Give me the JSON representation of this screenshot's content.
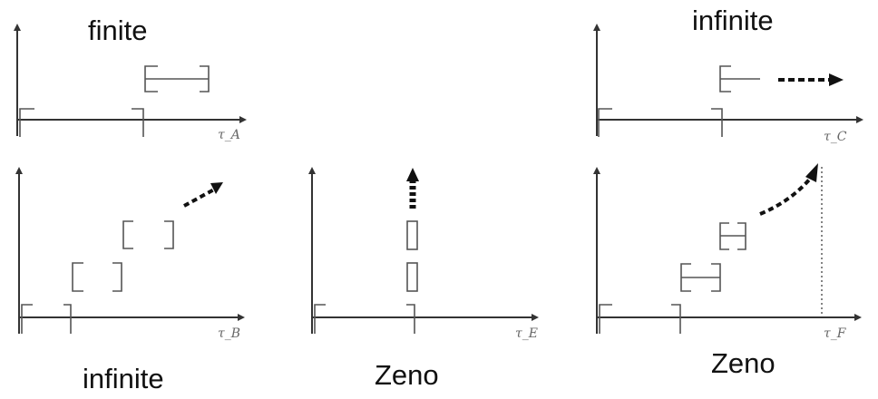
{
  "captions": {
    "finite": "finite",
    "infinite_top": "infinite",
    "infinite_bottom": "infinite",
    "zeno_middle": "Zeno",
    "zeno_right": "Zeno"
  },
  "axis_labels": {
    "a": "τ_A",
    "b": "τ_B",
    "c": "τ_C",
    "e": "τ_E",
    "f": "τ_F"
  },
  "colors": {
    "axis": "#333333",
    "interval": "#555555",
    "arrow": "#111111",
    "caption": "#111111"
  }
}
